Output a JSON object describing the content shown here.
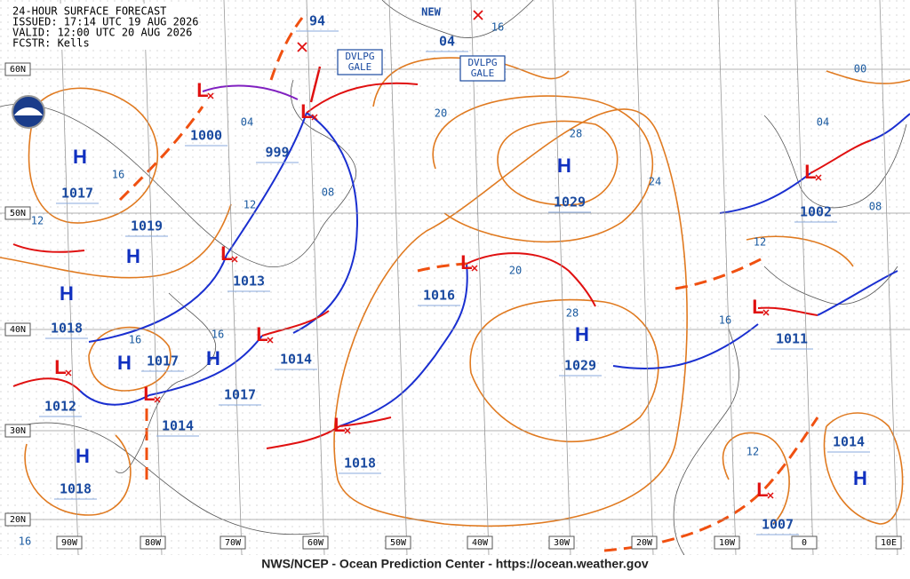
{
  "header": {
    "lines": [
      "24-HOUR SURFACE FORECAST",
      "ISSUED: 17:14 UTC 19 AUG 2026",
      "VALID:  12:00 UTC 20 AUG 2026",
      "FCSTR:  Kells"
    ]
  },
  "footer": "NWS/NCEP - Ocean Prediction Center - https://ocean.weather.gov",
  "lat_labels": [
    "60N",
    "50N",
    "40N",
    "30N",
    "20N"
  ],
  "lon_labels": [
    "90W",
    "80W",
    "70W",
    "60W",
    "50W",
    "40W",
    "30W",
    "20W",
    "10W",
    "0",
    "10E"
  ],
  "highs": [
    "H",
    "H",
    "H",
    "H",
    "H",
    "H",
    "H",
    "H",
    "H"
  ],
  "lows": [
    "L",
    "L",
    "L",
    "L",
    "L",
    "L",
    "L",
    "L",
    "L",
    "L",
    "L"
  ],
  "pressures": [
    "1017",
    "1019",
    "1018",
    "1017",
    "1017",
    "1012",
    "1014",
    "1018",
    "1000",
    "999",
    "1013",
    "1014",
    "1016",
    "1018",
    "1029",
    "1029",
    "1002",
    "1011",
    "1014",
    "1007",
    "94",
    "04"
  ],
  "isobar_labels": [
    "04",
    "16",
    "12",
    "12",
    "08",
    "20",
    "28",
    "24",
    "20",
    "28",
    "16",
    "16",
    "12",
    "16",
    "12",
    "04",
    "08",
    "00",
    "16",
    "16"
  ],
  "new_label": "NEW",
  "gale_labels": [
    [
      "DVLPG",
      "GALE"
    ],
    [
      "DVLPG",
      "GALE"
    ]
  ]
}
